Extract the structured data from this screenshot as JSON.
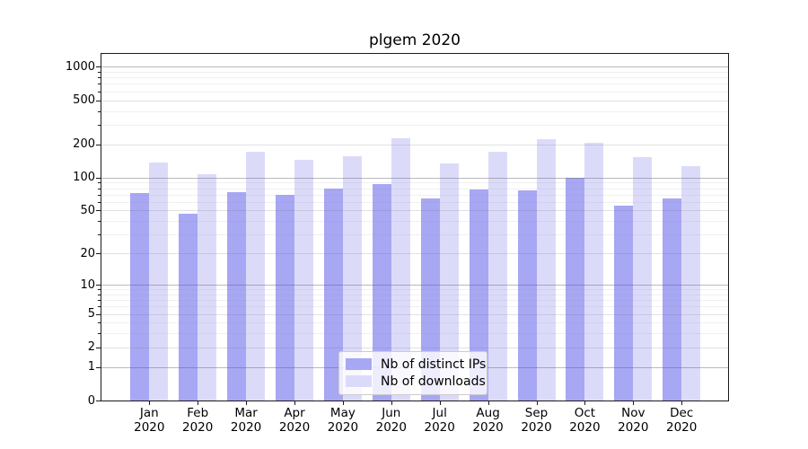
{
  "chart_data": {
    "type": "bar",
    "title": "plgem 2020",
    "categories": [
      "Jan",
      "Feb",
      "Mar",
      "Apr",
      "May",
      "Jun",
      "Jul",
      "Aug",
      "Sep",
      "Oct",
      "Nov",
      "Dec"
    ],
    "category_year": "2020",
    "series": [
      {
        "name": "Nb of distinct IPs",
        "color": "#a7a7f3",
        "values": [
          72,
          47,
          73,
          69,
          79,
          88,
          64,
          78,
          76,
          100,
          55,
          64
        ]
      },
      {
        "name": "Nb of downloads",
        "color": "#dbdbf9",
        "values": [
          138,
          107,
          172,
          144,
          157,
          228,
          134,
          171,
          224,
          208,
          154,
          128
        ]
      }
    ],
    "yscale": "log1p",
    "ylim": [
      0,
      1100
    ],
    "yticks": [
      1000,
      500,
      200,
      100,
      50,
      20,
      10,
      5,
      2,
      1,
      0
    ],
    "ytick_major": [
      1000,
      100,
      10,
      1
    ],
    "ytick_mid": [
      500,
      200,
      50,
      20,
      5,
      2
    ],
    "ytick_minor": [
      900,
      800,
      700,
      600,
      400,
      300,
      90,
      80,
      70,
      60,
      40,
      30,
      9,
      8,
      7,
      6,
      4,
      3
    ],
    "grid": "horizontal",
    "legend_position": "lower center"
  }
}
